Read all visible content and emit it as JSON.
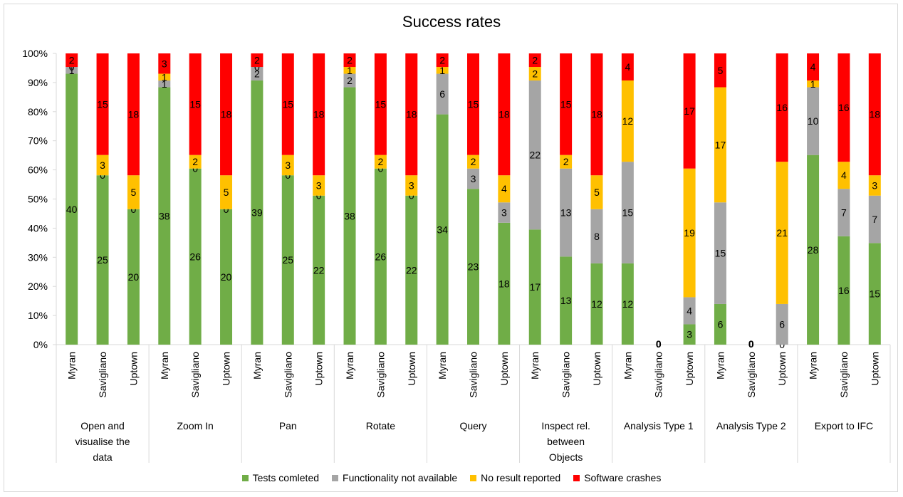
{
  "chart_data": {
    "type": "bar",
    "stacked": "percent",
    "title": "Success rates",
    "xlabel": "",
    "ylabel": "",
    "ylim": [
      0,
      100
    ],
    "y_ticks": [
      "0%",
      "10%",
      "20%",
      "30%",
      "40%",
      "50%",
      "60%",
      "70%",
      "80%",
      "90%",
      "100%"
    ],
    "grid": false,
    "legend_position": "bottom",
    "groups": [
      "Open and visualise the data",
      "Zoom In",
      "Pan",
      "Rotate",
      "Query",
      "Inspect rel. between Objects",
      "Analysis Type 1",
      "Analysis Type 2",
      "Export to IFC"
    ],
    "group_label_lines": [
      [
        "Open and",
        "visualise the",
        "data"
      ],
      [
        "Zoom In"
      ],
      [
        "Pan"
      ],
      [
        "Rotate"
      ],
      [
        "Query"
      ],
      [
        "Inspect rel.",
        "between",
        "Objects"
      ],
      [
        "Analysis Type 1"
      ],
      [
        "Analysis Type 2"
      ],
      [
        "Export to IFC"
      ]
    ],
    "subcategories": [
      "Myran",
      "Savigliano",
      "Uptown"
    ],
    "series": [
      {
        "name": "Tests comleted",
        "color": "#70ad47",
        "values": [
          [
            40,
            25,
            20
          ],
          [
            38,
            26,
            20
          ],
          [
            39,
            25,
            22
          ],
          [
            38,
            26,
            22
          ],
          [
            34,
            23,
            18
          ],
          [
            17,
            13,
            12
          ],
          [
            12,
            0,
            3
          ],
          [
            6,
            0,
            0
          ],
          [
            28,
            16,
            15
          ]
        ]
      },
      {
        "name": "Functionality not available",
        "color": "#a5a5a5",
        "values": [
          [
            1,
            0,
            0
          ],
          [
            1,
            0,
            0
          ],
          [
            2,
            0,
            0
          ],
          [
            2,
            0,
            0
          ],
          [
            6,
            3,
            3
          ],
          [
            22,
            13,
            8
          ],
          [
            15,
            0,
            4
          ],
          [
            15,
            0,
            6
          ],
          [
            10,
            7,
            7
          ]
        ]
      },
      {
        "name": "No result reported",
        "color": "#ffc000",
        "values": [
          [
            0,
            3,
            5
          ],
          [
            1,
            2,
            5
          ],
          [
            0,
            3,
            3
          ],
          [
            1,
            2,
            3
          ],
          [
            1,
            2,
            4
          ],
          [
            2,
            2,
            5
          ],
          [
            12,
            0,
            19
          ],
          [
            17,
            0,
            21
          ],
          [
            1,
            4,
            3
          ]
        ]
      },
      {
        "name": "Software crashes",
        "color": "#ff0000",
        "values": [
          [
            2,
            15,
            18
          ],
          [
            3,
            15,
            18
          ],
          [
            2,
            15,
            18
          ],
          [
            2,
            15,
            18
          ],
          [
            2,
            15,
            18
          ],
          [
            2,
            15,
            18
          ],
          [
            4,
            0,
            17
          ],
          [
            5,
            0,
            16
          ],
          [
            4,
            16,
            18
          ]
        ]
      }
    ]
  }
}
